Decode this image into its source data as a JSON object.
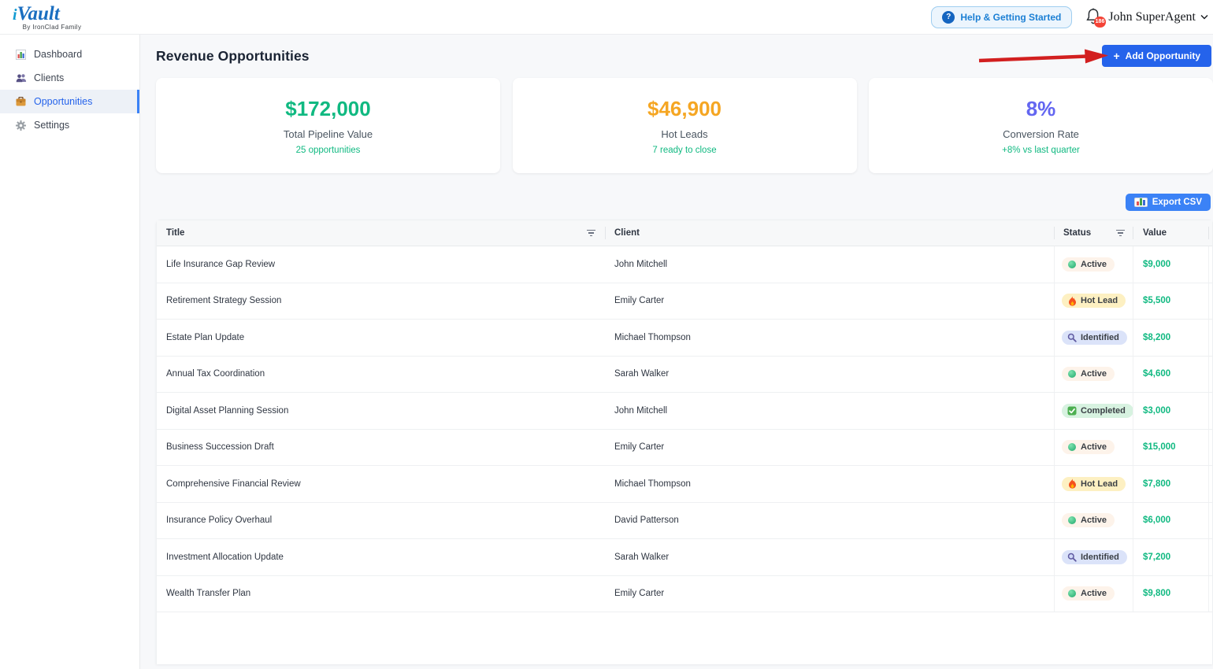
{
  "header": {
    "logo": {
      "prefix": "i",
      "name": "Vault",
      "subtitle": "By IronClad Family"
    },
    "help_button": "Help & Getting Started",
    "help_icon": "?",
    "notification_count": "186",
    "user_name": "John SuperAgent"
  },
  "sidebar": {
    "items": [
      {
        "label": "Dashboard",
        "icon": "bar-chart-icon",
        "active": false
      },
      {
        "label": "Clients",
        "icon": "people-icon",
        "active": false
      },
      {
        "label": "Opportunities",
        "icon": "briefcase-icon",
        "active": true
      },
      {
        "label": "Settings",
        "icon": "gear-icon",
        "active": false
      }
    ]
  },
  "page": {
    "title": "Revenue Opportunities",
    "add_button": {
      "icon": "+",
      "label": "Add Opportunity"
    },
    "export_button": "Export CSV"
  },
  "stats": [
    {
      "value": "$172,000",
      "label": "Total Pipeline Value",
      "sub": "25 opportunities",
      "color": "#10b981"
    },
    {
      "value": "$46,900",
      "label": "Hot Leads",
      "sub": "7 ready to close",
      "color": "#f5a623"
    },
    {
      "value": "8%",
      "label": "Conversion Rate",
      "sub": "+8% vs last quarter",
      "color": "#6366f1"
    }
  ],
  "table": {
    "columns": [
      "Title",
      "Client",
      "Status",
      "Value"
    ],
    "rows": [
      {
        "title": "Life Insurance Gap Review",
        "client": "John Mitchell",
        "status": "Active",
        "value": "$9,000"
      },
      {
        "title": "Retirement Strategy Session",
        "client": "Emily Carter",
        "status": "Hot Lead",
        "value": "$5,500"
      },
      {
        "title": "Estate Plan Update",
        "client": "Michael Thompson",
        "status": "Identified",
        "value": "$8,200"
      },
      {
        "title": "Annual Tax Coordination",
        "client": "Sarah Walker",
        "status": "Active",
        "value": "$4,600"
      },
      {
        "title": "Digital Asset Planning Session",
        "client": "John Mitchell",
        "status": "Completed",
        "value": "$3,000"
      },
      {
        "title": "Business Succession Draft",
        "client": "Emily Carter",
        "status": "Active",
        "value": "$15,000"
      },
      {
        "title": "Comprehensive Financial Review",
        "client": "Michael Thompson",
        "status": "Hot Lead",
        "value": "$7,800"
      },
      {
        "title": "Insurance Policy Overhaul",
        "client": "David Patterson",
        "status": "Active",
        "value": "$6,000"
      },
      {
        "title": "Investment Allocation Update",
        "client": "Sarah Walker",
        "status": "Identified",
        "value": "$7,200"
      },
      {
        "title": "Wealth Transfer Plan",
        "client": "Emily Carter",
        "status": "Active",
        "value": "$9,800"
      }
    ],
    "status_styles": {
      "Active": {
        "bg": "#fdf3ea",
        "icon": "green-dot"
      },
      "Hot Lead": {
        "bg": "#fdf0c2",
        "icon": "flame"
      },
      "Identified": {
        "bg": "#dbe3f9",
        "icon": "magnifier"
      },
      "Completed": {
        "bg": "#d7f2e0",
        "icon": "check"
      }
    }
  },
  "annotation": {
    "type": "red-arrow",
    "color": "#d21f1f",
    "points_to": "Add Opportunity button"
  },
  "colors": {
    "primary_button": "#2563eb",
    "export_button": "#3b82f6",
    "value_text": "#10b981",
    "sidebar_active": "#2563eb"
  }
}
